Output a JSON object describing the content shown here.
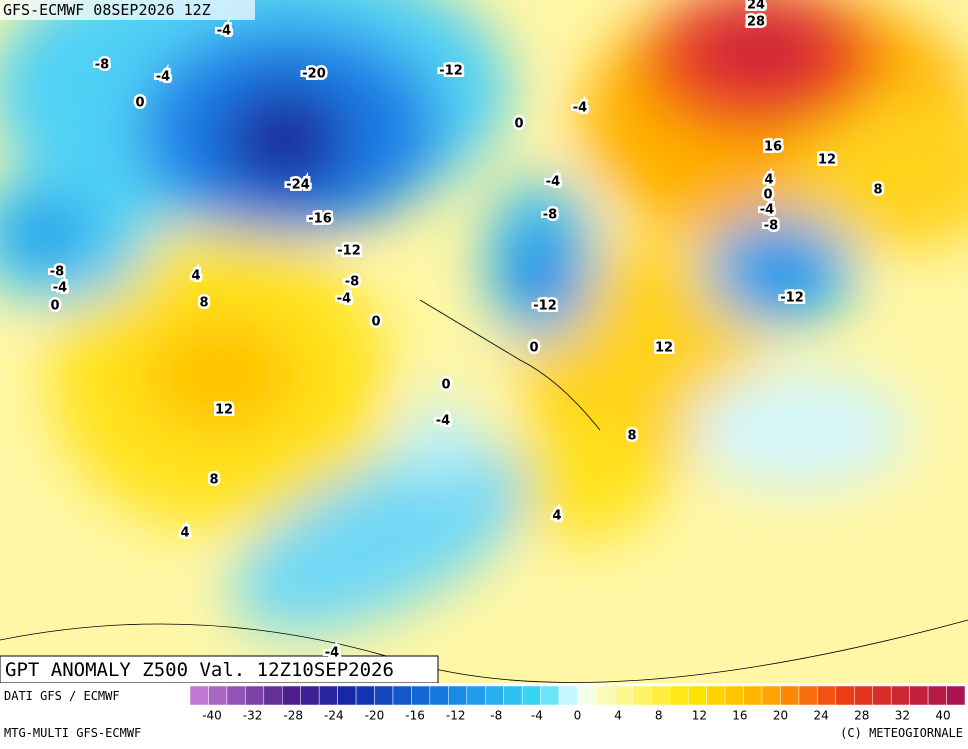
{
  "header": {
    "run": "GFS-ECMWF 08SEP2026 12Z",
    "title": "GPT ANOMALY Z500 Val. 12Z10SEP2026"
  },
  "footer": {
    "source": "DATI GFS / ECMWF",
    "model": "MTG-MULTI GFS-ECMWF",
    "copyright": "(C) METEOGIORNALE"
  },
  "colorbar": {
    "ticks": [
      -40,
      -32,
      -28,
      -24,
      -20,
      -16,
      -12,
      -8,
      -4,
      0,
      4,
      8,
      12,
      16,
      20,
      24,
      28,
      32,
      40
    ]
  },
  "contour_labels": [
    "-4",
    "-8",
    "-4",
    "0",
    "-20",
    "-12",
    "-4",
    "0",
    "24",
    "28",
    "16",
    "12",
    "4",
    "0",
    "-4",
    "-8",
    "8",
    "-4",
    "-8",
    "-24",
    "-16",
    "-12",
    "-8",
    "-4",
    "0",
    "-12",
    "0",
    "12",
    "-8",
    "-4",
    "0",
    "4",
    "8",
    "12",
    "0",
    "-4",
    "8",
    "8",
    "4",
    "4",
    "-4",
    "-12"
  ]
}
